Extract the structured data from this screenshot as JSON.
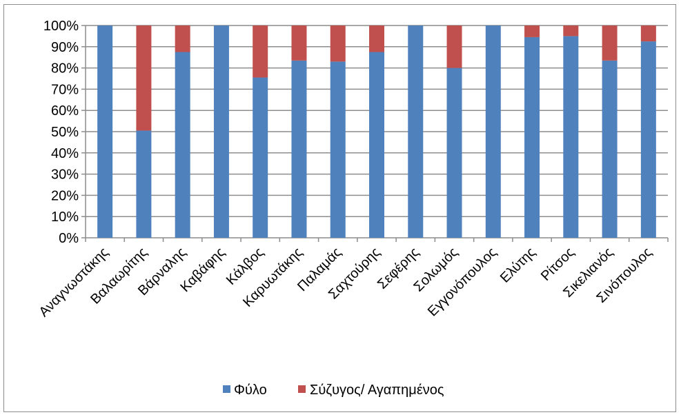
{
  "chart_data": {
    "type": "bar",
    "stacked": true,
    "percent_stacked": true,
    "categories": [
      "Αναγνωστάκης",
      "Βαλαωρίτης",
      "Βάρναλης",
      "Καβάφης",
      "Κάλβος",
      "Καρυωτάκης",
      "Παλαμάς",
      "Σαχτούρης",
      "Σεφέρης",
      "Σολωμός",
      "Εγγονόπουλος",
      "Ελύτης",
      "Ρίτσος",
      "Σικελιανός",
      "Σινόπουλος"
    ],
    "series": [
      {
        "name": "Φύλο",
        "color": "#4f81bd",
        "values": [
          100,
          50.5,
          87.5,
          100,
          75.5,
          83.5,
          83,
          87.5,
          100,
          80,
          100,
          94.5,
          95,
          83.5,
          92.5
        ]
      },
      {
        "name": "Σύζυγος/ Αγαπημένος",
        "color": "#c0504d",
        "values": [
          0,
          49.5,
          12.5,
          0,
          24.5,
          16.5,
          17,
          12.5,
          0,
          20,
          0,
          5.5,
          5,
          16.5,
          7.5
        ]
      }
    ],
    "yticks": [
      "0%",
      "10%",
      "20%",
      "30%",
      "40%",
      "50%",
      "60%",
      "70%",
      "80%",
      "90%",
      "100%"
    ],
    "ylim": [
      0,
      100
    ],
    "grid": true,
    "legend": "bottom"
  }
}
